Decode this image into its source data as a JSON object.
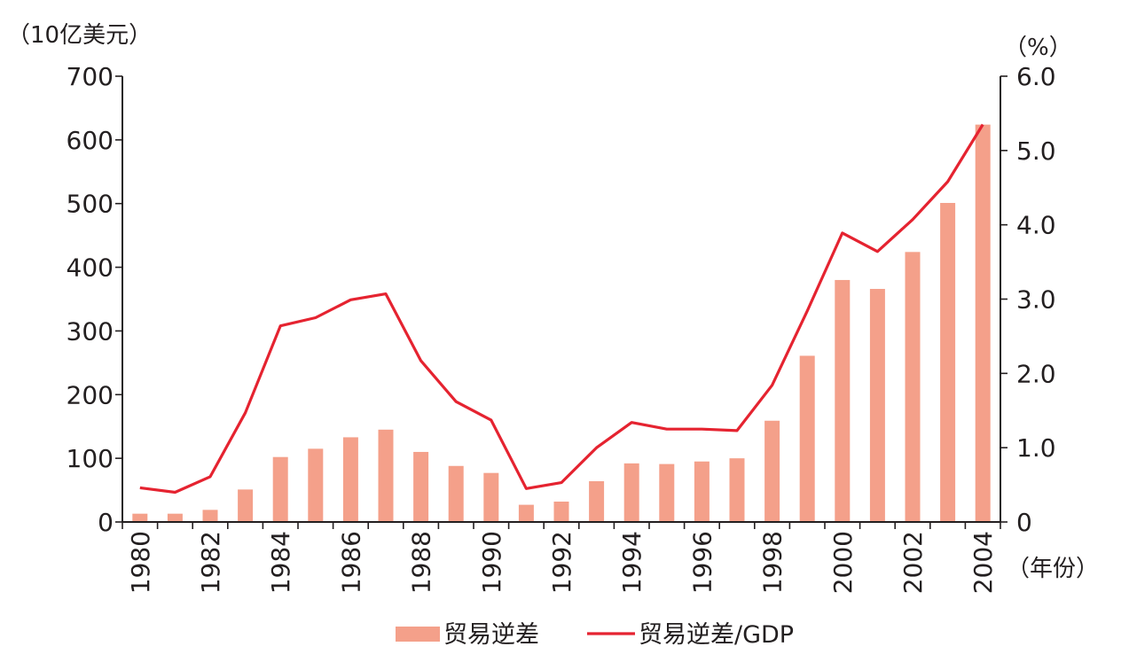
{
  "chart_data": {
    "type": "bar",
    "x": [
      1980,
      1981,
      1982,
      1983,
      1984,
      1985,
      1986,
      1987,
      1988,
      1989,
      1990,
      1991,
      1992,
      1993,
      1994,
      1995,
      1996,
      1997,
      1998,
      1999,
      2000,
      2001,
      2002,
      2003,
      2004
    ],
    "x_tick_labels": [
      "1980",
      "1982",
      "1984",
      "1986",
      "1988",
      "1990",
      "1992",
      "1994",
      "1996",
      "1998",
      "2000",
      "2002",
      "2004"
    ],
    "left_axis": {
      "unit": "（10亿美元）",
      "ylim": [
        0,
        700
      ],
      "ticks": [
        "0",
        "100",
        "200",
        "300",
        "400",
        "500",
        "600",
        "700"
      ]
    },
    "right_axis": {
      "unit": "（%）",
      "ylim": [
        0,
        6
      ],
      "ticks": [
        "0",
        "1.0",
        "2.0",
        "3.0",
        "4.0",
        "5.0",
        "6.0"
      ]
    },
    "x_unit": "（年份）",
    "series": [
      {
        "name": "贸易逆差",
        "type": "bar",
        "axis": "left",
        "color": "#f4a08a",
        "values": [
          13,
          13,
          19,
          51,
          102,
          115,
          133,
          145,
          110,
          88,
          77,
          27,
          32,
          64,
          92,
          91,
          95,
          100,
          159,
          261,
          380,
          366,
          424,
          501,
          624
        ]
      },
      {
        "name": "贸易逆差/GDP",
        "type": "line",
        "axis": "right",
        "color": "#e52330",
        "values": [
          0.46,
          0.4,
          0.61,
          1.47,
          2.64,
          2.75,
          2.99,
          3.07,
          2.17,
          1.62,
          1.37,
          0.45,
          0.53,
          1.0,
          1.34,
          1.25,
          1.25,
          1.23,
          1.84,
          2.84,
          3.89,
          3.64,
          4.07,
          4.58,
          5.35
        ]
      }
    ],
    "legend_position": "bottom",
    "grid": false
  }
}
